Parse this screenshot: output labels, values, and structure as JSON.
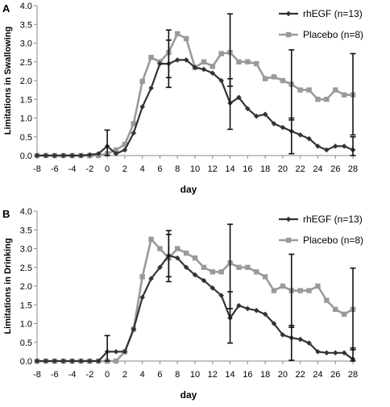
{
  "chart_data": [
    {
      "panel_label": "A",
      "type": "line",
      "xlabel": "day",
      "ylabel": "Limitations in Swallowing",
      "xlim": [
        -8,
        28
      ],
      "ylim": [
        0.0,
        4.0
      ],
      "x_ticks": [
        "-8",
        "-6",
        "-4",
        "-2",
        "0",
        "2",
        "4",
        "6",
        "8",
        "10",
        "12",
        "14",
        "16",
        "18",
        "20",
        "22",
        "24",
        "26",
        "28"
      ],
      "y_ticks": [
        "0.0",
        "0.5",
        "1.0",
        "1.5",
        "2.0",
        "2.5",
        "3.0",
        "3.5",
        "4.0"
      ],
      "legend_position": "top-right",
      "series": [
        {
          "name": "rhEGF (n=13)",
          "color": "#333333",
          "marker": "diamond",
          "x": [
            -8,
            -7,
            -6,
            -5,
            -4,
            -3,
            -2,
            -1,
            0,
            1,
            2,
            3,
            4,
            5,
            6,
            7,
            8,
            9,
            10,
            11,
            12,
            13,
            14,
            15,
            16,
            17,
            18,
            19,
            20,
            21,
            22,
            23,
            24,
            25,
            26,
            27,
            28
          ],
          "y": [
            0,
            0,
            0,
            0,
            0,
            0,
            0.02,
            0.05,
            0.25,
            0.05,
            0.15,
            0.6,
            1.3,
            1.8,
            2.45,
            2.45,
            2.55,
            2.55,
            2.35,
            2.3,
            2.2,
            2.0,
            1.4,
            1.55,
            1.25,
            1.05,
            1.1,
            0.85,
            0.75,
            0.65,
            0.55,
            0.45,
            0.25,
            0.15,
            0.25,
            0.25,
            0.15
          ],
          "error_bars": [
            {
              "x": 0,
              "low": 0.0,
              "high": 0.68
            },
            {
              "x": 7,
              "low": 1.82,
              "high": 3.08
            },
            {
              "x": 14,
              "low": 0.7,
              "high": 2.05
            },
            {
              "x": 21,
              "low": 0.05,
              "high": 1.0
            },
            {
              "x": 28,
              "low": 0.0,
              "high": 0.5
            }
          ]
        },
        {
          "name": "Placebo (n=8)",
          "color": "#9a9a9a",
          "marker": "square",
          "x": [
            -8,
            -7,
            -6,
            -5,
            -4,
            -3,
            -2,
            -1,
            0,
            1,
            2,
            3,
            4,
            5,
            6,
            7,
            8,
            9,
            10,
            11,
            12,
            13,
            14,
            15,
            16,
            17,
            18,
            19,
            20,
            21,
            22,
            23,
            24,
            25,
            26,
            27,
            28
          ],
          "y": [
            0,
            0,
            0,
            0,
            0,
            0,
            0,
            0,
            0.05,
            0.15,
            0.3,
            0.85,
            1.98,
            2.62,
            2.5,
            2.75,
            3.25,
            3.12,
            2.35,
            2.5,
            2.38,
            2.72,
            2.75,
            2.5,
            2.5,
            2.45,
            2.05,
            2.1,
            2.0,
            1.9,
            1.75,
            1.75,
            1.5,
            1.5,
            1.75,
            1.62,
            1.62
          ],
          "error_bars": [
            {
              "x": 7,
              "low": 2.08,
              "high": 3.35
            },
            {
              "x": 14,
              "low": 1.85,
              "high": 3.78
            },
            {
              "x": 21,
              "low": 0.95,
              "high": 2.82
            },
            {
              "x": 28,
              "low": 0.55,
              "high": 2.72
            }
          ]
        }
      ]
    },
    {
      "panel_label": "B",
      "type": "line",
      "xlabel": "day",
      "ylabel": "Limitations in Drinking",
      "xlim": [
        -8,
        28
      ],
      "ylim": [
        0.0,
        4.0
      ],
      "x_ticks": [
        "-8",
        "-6",
        "-4",
        "-2",
        "0",
        "2",
        "4",
        "6",
        "8",
        "10",
        "12",
        "14",
        "16",
        "18",
        "20",
        "22",
        "24",
        "26",
        "28"
      ],
      "y_ticks": [
        "0.0",
        "0.5",
        "1.0",
        "1.5",
        "2.0",
        "2.5",
        "3.0",
        "3.5",
        "4.0"
      ],
      "legend_position": "top-right",
      "series": [
        {
          "name": "rhEGF (n=13)",
          "color": "#333333",
          "marker": "diamond",
          "x": [
            -8,
            -7,
            -6,
            -5,
            -4,
            -3,
            -2,
            -1,
            0,
            1,
            2,
            3,
            4,
            5,
            6,
            7,
            8,
            9,
            10,
            11,
            12,
            13,
            14,
            15,
            16,
            17,
            18,
            19,
            20,
            21,
            22,
            23,
            24,
            25,
            26,
            27,
            28
          ],
          "y": [
            0,
            0,
            0,
            0,
            0,
            0,
            0,
            0,
            0.25,
            0.25,
            0.25,
            0.85,
            1.7,
            2.2,
            2.5,
            2.82,
            2.75,
            2.5,
            2.3,
            2.15,
            1.95,
            1.75,
            1.15,
            1.48,
            1.4,
            1.35,
            1.25,
            1.0,
            0.7,
            0.62,
            0.58,
            0.48,
            0.25,
            0.22,
            0.22,
            0.22,
            0.05
          ],
          "error_bars": [
            {
              "x": 0,
              "low": 0.0,
              "high": 0.68
            },
            {
              "x": 7,
              "low": 2.12,
              "high": 3.48
            },
            {
              "x": 14,
              "low": 0.48,
              "high": 1.85
            },
            {
              "x": 21,
              "low": 0.02,
              "high": 0.95
            },
            {
              "x": 28,
              "low": 0.0,
              "high": 0.35
            }
          ]
        },
        {
          "name": "Placebo (n=8)",
          "color": "#9a9a9a",
          "marker": "square",
          "x": [
            -8,
            -7,
            -6,
            -5,
            -4,
            -3,
            -2,
            -1,
            0,
            1,
            2,
            3,
            4,
            5,
            6,
            7,
            8,
            9,
            10,
            11,
            12,
            13,
            14,
            15,
            16,
            17,
            18,
            19,
            20,
            21,
            22,
            23,
            24,
            25,
            26,
            27,
            28
          ],
          "y": [
            0,
            0,
            0,
            0,
            0,
            0,
            0,
            0,
            0,
            0,
            0.25,
            0.85,
            2.25,
            3.25,
            3.0,
            2.75,
            3.0,
            2.88,
            2.75,
            2.5,
            2.38,
            2.38,
            2.62,
            2.5,
            2.5,
            2.38,
            2.25,
            1.88,
            2.0,
            1.88,
            1.88,
            1.88,
            2.0,
            1.62,
            1.38,
            1.25,
            1.38
          ],
          "error_bars": [
            {
              "x": 7,
              "low": 2.25,
              "high": 3.38
            },
            {
              "x": 14,
              "low": 1.4,
              "high": 3.65
            },
            {
              "x": 21,
              "low": 0.9,
              "high": 2.85
            },
            {
              "x": 28,
              "low": 0.3,
              "high": 2.48
            }
          ]
        }
      ]
    }
  ]
}
